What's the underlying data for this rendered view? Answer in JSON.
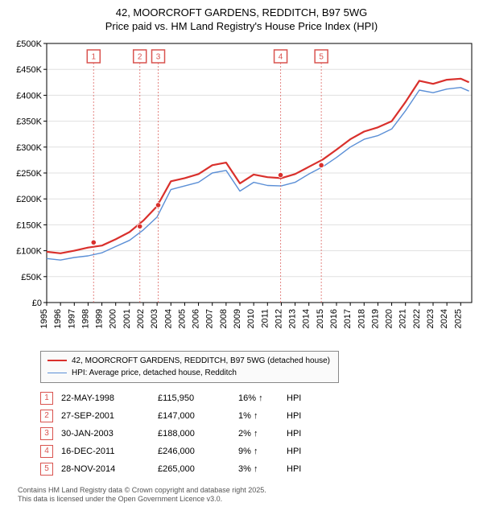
{
  "title_line1": "42, MOORCROFT GARDENS, REDDITCH, B97 5WG",
  "title_line2": "Price paid vs. HM Land Registry's House Price Index (HPI)",
  "chart": {
    "type": "line",
    "background_color": "#ffffff",
    "plot_background": "#ffffff",
    "grid_color": "#e0e0e0",
    "x_range": [
      1995,
      2025.8
    ],
    "y_range": [
      0,
      500
    ],
    "y_tick_step": 50,
    "y_tick_prefix": "£",
    "y_tick_suffix": "K",
    "x_ticks": [
      1995,
      1996,
      1997,
      1998,
      1999,
      2000,
      2001,
      2002,
      2003,
      2004,
      2005,
      2006,
      2007,
      2008,
      2009,
      2010,
      2011,
      2012,
      2013,
      2014,
      2015,
      2016,
      2017,
      2018,
      2019,
      2020,
      2021,
      2022,
      2023,
      2024,
      2025
    ],
    "series": [
      {
        "name": "HPI: Average price, detached house, Redditch",
        "color": "#5b8fd6",
        "line_width": 1.4,
        "points": [
          [
            1995,
            85
          ],
          [
            1996,
            82
          ],
          [
            1997,
            87
          ],
          [
            1998,
            90
          ],
          [
            1999,
            96
          ],
          [
            2000,
            108
          ],
          [
            2001,
            120
          ],
          [
            2002,
            140
          ],
          [
            2003,
            165
          ],
          [
            2004,
            218
          ],
          [
            2005,
            225
          ],
          [
            2006,
            232
          ],
          [
            2007,
            250
          ],
          [
            2008,
            255
          ],
          [
            2009,
            215
          ],
          [
            2010,
            232
          ],
          [
            2011,
            226
          ],
          [
            2012,
            225
          ],
          [
            2013,
            232
          ],
          [
            2014,
            248
          ],
          [
            2015,
            262
          ],
          [
            2016,
            280
          ],
          [
            2017,
            300
          ],
          [
            2018,
            315
          ],
          [
            2019,
            322
          ],
          [
            2020,
            335
          ],
          [
            2021,
            370
          ],
          [
            2022,
            410
          ],
          [
            2023,
            405
          ],
          [
            2024,
            412
          ],
          [
            2025,
            415
          ],
          [
            2025.6,
            408
          ]
        ]
      },
      {
        "name": "42, MOORCROFT GARDENS, REDDITCH, B97 5WG (detached house)",
        "color": "#d9302c",
        "line_width": 2.2,
        "points": [
          [
            1995,
            98
          ],
          [
            1996,
            95
          ],
          [
            1997,
            100
          ],
          [
            1998,
            106
          ],
          [
            1999,
            110
          ],
          [
            2000,
            122
          ],
          [
            2001,
            136
          ],
          [
            2002,
            158
          ],
          [
            2003,
            186
          ],
          [
            2004,
            234
          ],
          [
            2005,
            240
          ],
          [
            2006,
            248
          ],
          [
            2007,
            265
          ],
          [
            2008,
            270
          ],
          [
            2009,
            230
          ],
          [
            2010,
            247
          ],
          [
            2011,
            242
          ],
          [
            2012,
            240
          ],
          [
            2013,
            248
          ],
          [
            2014,
            262
          ],
          [
            2015,
            276
          ],
          [
            2016,
            295
          ],
          [
            2017,
            315
          ],
          [
            2018,
            330
          ],
          [
            2019,
            338
          ],
          [
            2020,
            350
          ],
          [
            2021,
            387
          ],
          [
            2022,
            428
          ],
          [
            2023,
            422
          ],
          [
            2024,
            430
          ],
          [
            2025,
            432
          ],
          [
            2025.6,
            425
          ]
        ]
      }
    ],
    "sale_markers": [
      {
        "n": "1",
        "x": 1998.4,
        "price_k": 116
      },
      {
        "n": "2",
        "x": 2001.75,
        "price_k": 147
      },
      {
        "n": "3",
        "x": 2003.08,
        "price_k": 188
      },
      {
        "n": "4",
        "x": 2011.95,
        "price_k": 246
      },
      {
        "n": "5",
        "x": 2014.9,
        "price_k": 265
      }
    ],
    "marker_box_color": "#d9534f",
    "marker_dash_color": "#d9534f",
    "sale_point_color": "#d9302c",
    "title_fontsize": 13,
    "tick_fontsize": 11
  },
  "legend": [
    {
      "color": "#d9302c",
      "width": 2.2,
      "label": "42, MOORCROFT GARDENS, REDDITCH, B97 5WG (detached house)"
    },
    {
      "color": "#5b8fd6",
      "width": 1.4,
      "label": "HPI: Average price, detached house, Redditch"
    }
  ],
  "transactions": [
    {
      "n": "1",
      "date": "22-MAY-1998",
      "price": "£115,950",
      "pct": "16%",
      "dir": "↑",
      "vs": "HPI"
    },
    {
      "n": "2",
      "date": "27-SEP-2001",
      "price": "£147,000",
      "pct": "1%",
      "dir": "↑",
      "vs": "HPI"
    },
    {
      "n": "3",
      "date": "30-JAN-2003",
      "price": "£188,000",
      "pct": "2%",
      "dir": "↑",
      "vs": "HPI"
    },
    {
      "n": "4",
      "date": "16-DEC-2011",
      "price": "£246,000",
      "pct": "9%",
      "dir": "↑",
      "vs": "HPI"
    },
    {
      "n": "5",
      "date": "28-NOV-2014",
      "price": "£265,000",
      "pct": "3%",
      "dir": "↑",
      "vs": "HPI"
    }
  ],
  "footer_line1": "Contains HM Land Registry data © Crown copyright and database right 2025.",
  "footer_line2": "This data is licensed under the Open Government Licence v3.0."
}
